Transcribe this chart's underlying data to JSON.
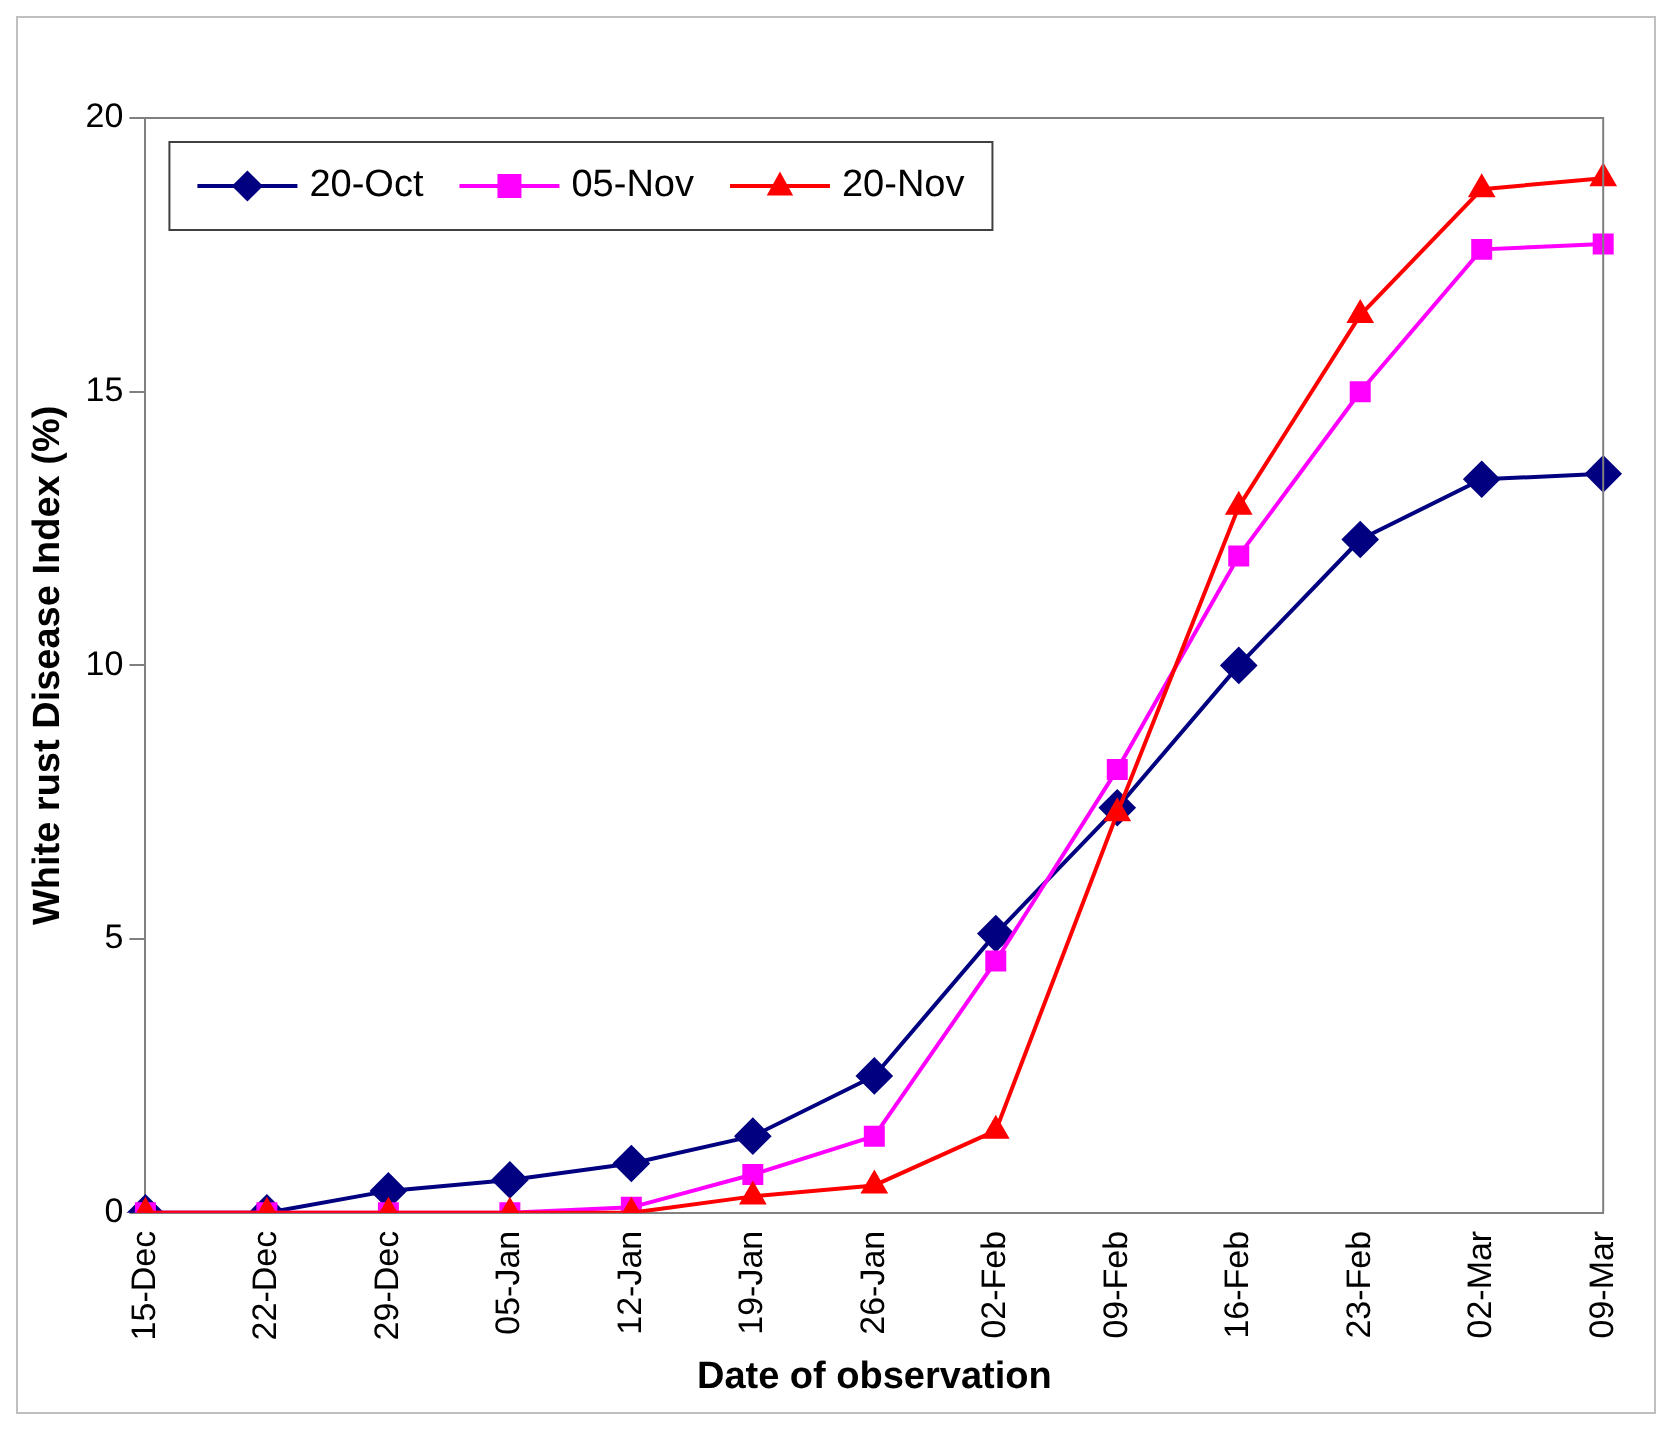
{
  "chart_data": {
    "type": "line",
    "xlabel": "Date of observation",
    "ylabel": "White rust Disease Index (%)",
    "categories": [
      "15-Dec",
      "22-Dec",
      "29-Dec",
      "05-Jan",
      "12-Jan",
      "19-Jan",
      "26-Jan",
      "02-Feb",
      "09-Feb",
      "16-Feb",
      "23-Feb",
      "02-Mar",
      "09-Mar"
    ],
    "series": [
      {
        "name": "20-Oct",
        "color": "#000080",
        "marker": "diamond",
        "values": [
          0,
          0,
          0.4,
          0.6,
          0.9,
          1.4,
          2.5,
          5.1,
          7.4,
          10,
          12.3,
          13.4,
          13.5
        ]
      },
      {
        "name": "05-Nov",
        "color": "#ff00ff",
        "marker": "square",
        "values": [
          0,
          0,
          0,
          0,
          0.1,
          0.7,
          1.4,
          4.6,
          8.1,
          12,
          15,
          17.6,
          17.7
        ]
      },
      {
        "name": "20-Nov",
        "color": "#ff0000",
        "marker": "triangle",
        "values": [
          0,
          0,
          0,
          0,
          0,
          0.3,
          0.5,
          1.5,
          7.3,
          12.9,
          16.4,
          18.7,
          18.9
        ]
      }
    ],
    "ylim": [
      0,
      20
    ],
    "yticks": [
      0,
      5,
      10,
      15,
      20
    ],
    "grid": false,
    "legend": "top left",
    "line_style": "solid"
  }
}
